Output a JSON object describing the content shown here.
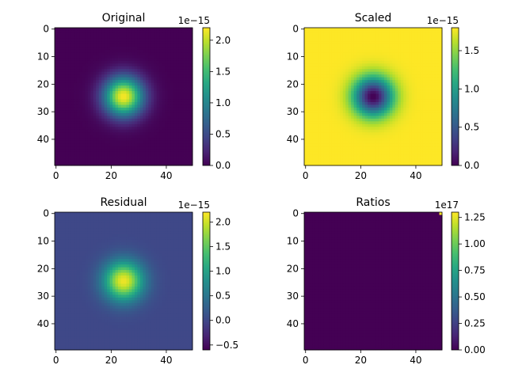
{
  "chart_data": [
    {
      "type": "heatmap",
      "title": "Original",
      "colormap": "viridis",
      "shape": [
        50,
        50
      ],
      "pattern": "gaussian-peak",
      "center": [
        24.5,
        24.5
      ],
      "sigma": 5,
      "background_fraction": 0.0,
      "xticks": [
        "0",
        "20",
        "40"
      ],
      "yticks": [
        "0",
        "10",
        "20",
        "30",
        "40"
      ],
      "colorbar": {
        "min": 0.0,
        "max": 2.2,
        "ticks": [
          "0.0",
          "0.5",
          "1.0",
          "1.5",
          "2.0"
        ],
        "offset_text": "1e−15"
      }
    },
    {
      "type": "heatmap",
      "title": "Scaled",
      "colormap": "viridis",
      "shape": [
        50,
        50
      ],
      "pattern": "gaussian-dip",
      "center": [
        24.5,
        24.5
      ],
      "sigma": 5,
      "xticks": [
        "0",
        "20",
        "40"
      ],
      "yticks": [
        "0",
        "10",
        "20",
        "30",
        "40"
      ],
      "colorbar": {
        "min": 0.0,
        "max": 1.8,
        "ticks": [
          "0.0",
          "0.5",
          "1.0",
          "1.5"
        ],
        "offset_text": "1e−15"
      }
    },
    {
      "type": "heatmap",
      "title": "Residual",
      "colormap": "viridis",
      "shape": [
        50,
        50
      ],
      "pattern": "gaussian-peak",
      "center": [
        24.5,
        24.5
      ],
      "sigma": 5,
      "background_fraction": 0.0,
      "xticks": [
        "0",
        "20",
        "40"
      ],
      "yticks": [
        "0",
        "10",
        "20",
        "30",
        "40"
      ],
      "colorbar": {
        "min": -0.6,
        "max": 2.2,
        "ticks": [
          "−0.5",
          "0.0",
          "0.5",
          "1.0",
          "1.5",
          "2.0"
        ],
        "offset_text": "1e−15"
      }
    },
    {
      "type": "heatmap",
      "title": "Ratios",
      "colormap": "viridis",
      "shape": [
        50,
        50
      ],
      "pattern": "single-hot-pixel",
      "hot_pixel": [
        0,
        49
      ],
      "xticks": [
        "0",
        "20",
        "40"
      ],
      "yticks": [
        "0",
        "10",
        "20",
        "30",
        "40"
      ],
      "colorbar": {
        "min": 0.0,
        "max": 1.3,
        "ticks": [
          "0.00",
          "0.25",
          "0.50",
          "0.75",
          "1.00",
          "1.25"
        ],
        "offset_text": "1e17"
      }
    }
  ]
}
